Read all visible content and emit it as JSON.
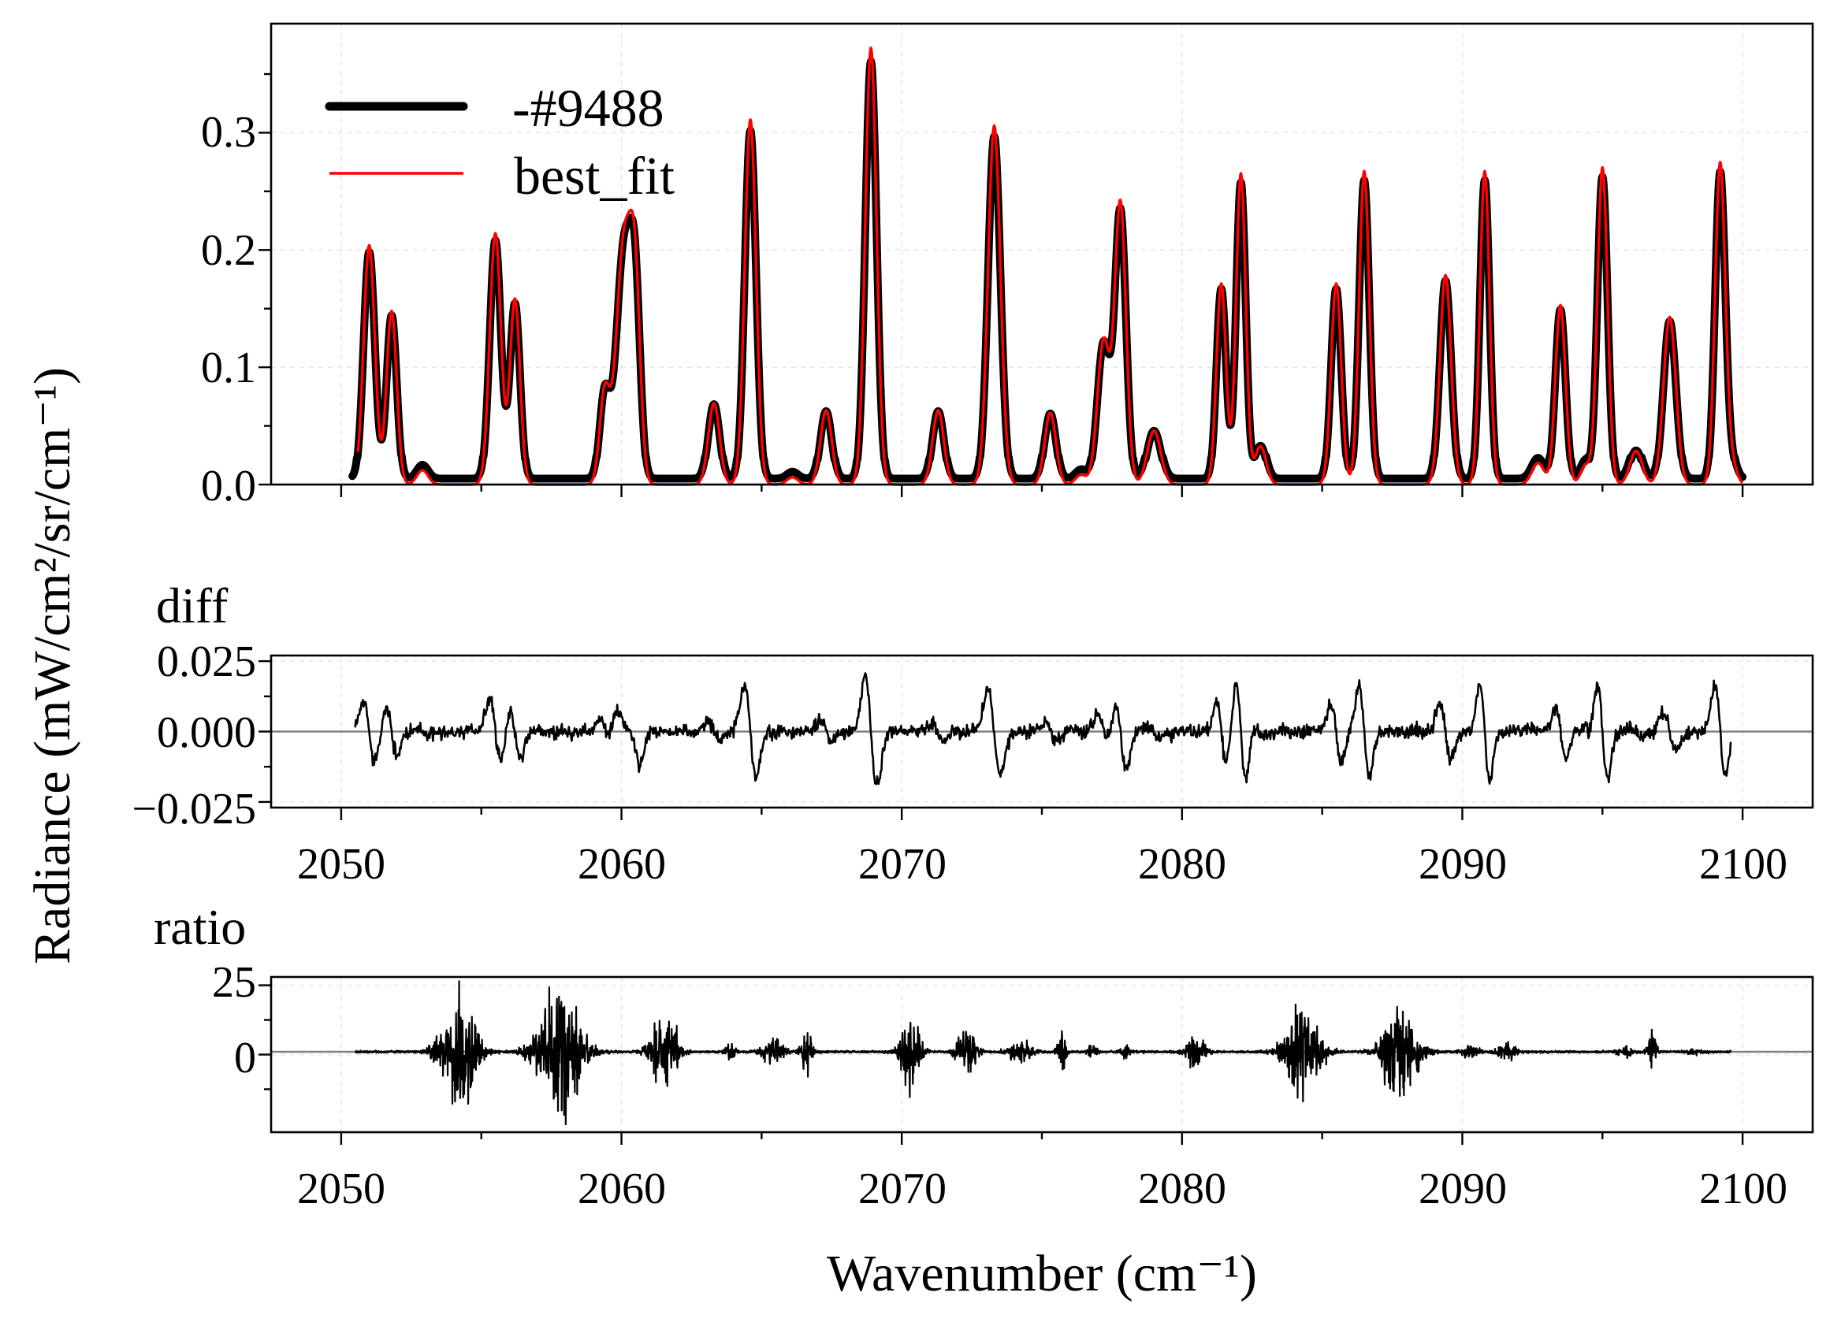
{
  "colors": {
    "observed": "#000000",
    "fit": "#ff0000",
    "zero_line": "#808080",
    "grid": "#e4e4e4"
  },
  "legend": {
    "observed_label": "-#9488",
    "fit_label": "best_fit"
  },
  "labels": {
    "ylabel": "Radiance (mW/cm²/sr/cm⁻¹)",
    "xlabel": "Wavenumber (cm⁻¹)",
    "diff_title": "diff",
    "ratio_title": "ratio"
  },
  "chart_data": [
    {
      "type": "line",
      "name": "spectrum",
      "title": "",
      "xlabel": "",
      "ylabel": "Radiance (mW/cm²/sr/cm⁻¹)",
      "xlim": [
        2047.5,
        2102.5
      ],
      "ylim": [
        0.0,
        0.393
      ],
      "grid": true,
      "legend_position": "top-left",
      "xticks": [
        2050,
        2060,
        2070,
        2080,
        2090,
        2100
      ],
      "yticks": [
        0.0,
        0.1,
        0.2,
        0.3
      ],
      "ytick_labels": [
        "0.0",
        "0.1",
        "0.2",
        "0.3"
      ],
      "peaks": [
        [
          2051.0,
          0.2,
          0.2
        ],
        [
          2051.8,
          0.145,
          0.18
        ],
        [
          2052.9,
          0.012,
          0.2
        ],
        [
          2055.5,
          0.21,
          0.2
        ],
        [
          2056.2,
          0.155,
          0.18
        ],
        [
          2059.4,
          0.075,
          0.18
        ],
        [
          2060.1,
          0.205,
          0.28
        ],
        [
          2060.5,
          0.13,
          0.18
        ],
        [
          2063.3,
          0.068,
          0.2
        ],
        [
          2064.6,
          0.305,
          0.2
        ],
        [
          2066.1,
          0.006,
          0.2
        ],
        [
          2067.3,
          0.062,
          0.2
        ],
        [
          2068.9,
          0.365,
          0.2
        ],
        [
          2071.3,
          0.062,
          0.2
        ],
        [
          2073.3,
          0.3,
          0.22
        ],
        [
          2075.3,
          0.06,
          0.2
        ],
        [
          2076.4,
          0.008,
          0.2
        ],
        [
          2077.2,
          0.12,
          0.22
        ],
        [
          2077.8,
          0.235,
          0.2
        ],
        [
          2079.0,
          0.045,
          0.24
        ],
        [
          2081.4,
          0.168,
          0.17
        ],
        [
          2082.1,
          0.26,
          0.17
        ],
        [
          2082.8,
          0.032,
          0.2
        ],
        [
          2085.5,
          0.168,
          0.18
        ],
        [
          2086.5,
          0.262,
          0.18
        ],
        [
          2089.4,
          0.175,
          0.2
        ],
        [
          2090.8,
          0.262,
          0.17
        ],
        [
          2092.7,
          0.018,
          0.22
        ],
        [
          2093.5,
          0.15,
          0.18
        ],
        [
          2094.4,
          0.016,
          0.18
        ],
        [
          2095.0,
          0.265,
          0.18
        ],
        [
          2096.2,
          0.028,
          0.22
        ],
        [
          2097.4,
          0.14,
          0.22
        ],
        [
          2099.2,
          0.268,
          0.18
        ],
        [
          2099.6,
          0.018,
          0.18
        ]
      ],
      "series": [
        {
          "name": "-#9488",
          "x_range": [
            2050.0,
            2100.0
          ],
          "baseline": 0.005
        },
        {
          "name": "best_fit",
          "x_range": [
            2050.6,
            2100.0
          ],
          "baseline": 0.0
        }
      ]
    },
    {
      "type": "line",
      "name": "diff",
      "title": "diff",
      "xlim": [
        2047.5,
        2102.5
      ],
      "ylim": [
        -0.027,
        0.027
      ],
      "grid": true,
      "xticks": [
        2050,
        2060,
        2070,
        2080,
        2090,
        2100
      ],
      "xtick_labels": [
        "2050",
        "2060",
        "2070",
        "2080",
        "2090",
        "2100"
      ],
      "yticks": [
        -0.025,
        0.0,
        0.025
      ],
      "ytick_labels": [
        "−0.025",
        "0.000",
        "0.025"
      ],
      "x_range": [
        2050.5,
        2099.6
      ],
      "noise_amplitude": 0.004,
      "zero_line": 0.0
    },
    {
      "type": "line",
      "name": "ratio",
      "title": "ratio",
      "xlim": [
        2047.5,
        2102.5
      ],
      "ylim": [
        -28,
        28
      ],
      "grid": true,
      "xticks": [
        2050,
        2060,
        2070,
        2080,
        2090,
        2100
      ],
      "xtick_labels": [
        "2050",
        "2060",
        "2070",
        "2080",
        "2090",
        "2100"
      ],
      "yticks": [
        0,
        25
      ],
      "ytick_labels": [
        "0",
        "25"
      ],
      "x_range": [
        2050.5,
        2099.6
      ],
      "bursts": [
        [
          2054.2,
          24,
          0.45
        ],
        [
          2057.8,
          26,
          0.55
        ],
        [
          2061.5,
          15,
          0.35
        ],
        [
          2063.9,
          4,
          0.12
        ],
        [
          2065.4,
          5,
          0.3
        ],
        [
          2066.6,
          9,
          0.15
        ],
        [
          2070.3,
          14,
          0.25
        ],
        [
          2072.3,
          9,
          0.25
        ],
        [
          2074.2,
          4,
          0.3
        ],
        [
          2075.7,
          7,
          0.12
        ],
        [
          2076.8,
          3,
          0.1
        ],
        [
          2078.0,
          2,
          0.15
        ],
        [
          2080.5,
          6,
          0.25
        ],
        [
          2084.3,
          18,
          0.45
        ],
        [
          2087.8,
          19,
          0.45
        ],
        [
          2090.3,
          3,
          0.2
        ],
        [
          2091.6,
          4,
          0.25
        ],
        [
          2096.8,
          7,
          0.12
        ],
        [
          2095.8,
          2,
          0.2
        ],
        [
          2098.3,
          1,
          0.2
        ]
      ],
      "zero_line": 1.0
    }
  ]
}
